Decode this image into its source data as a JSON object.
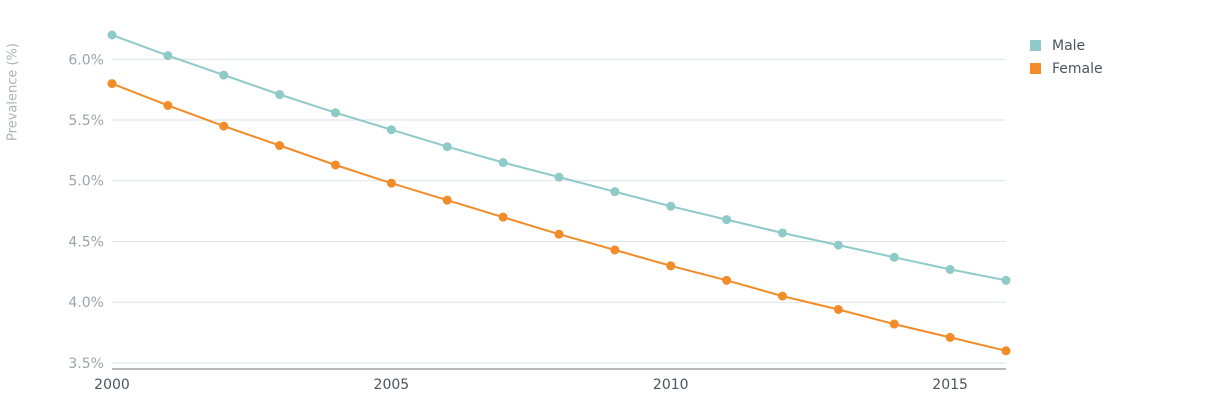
{
  "chart_data": {
    "type": "line",
    "title": "",
    "xlabel": "",
    "ylabel": "Prevalence (%)",
    "x": [
      2000,
      2001,
      2002,
      2003,
      2004,
      2005,
      2006,
      2007,
      2008,
      2009,
      2010,
      2011,
      2012,
      2013,
      2014,
      2015,
      2016
    ],
    "xlim": [
      2000,
      2016
    ],
    "ylim": [
      3.4,
      6.2
    ],
    "x_ticks": [
      2000,
      2005,
      2010,
      2015
    ],
    "x_tick_labels": [
      "2000",
      "2005",
      "2010",
      "2015"
    ],
    "y_ticks": [
      3.5,
      4.0,
      4.5,
      5.0,
      5.5,
      6.0
    ],
    "y_tick_labels": [
      "3.5%",
      "4.0%",
      "4.5%",
      "5.0%",
      "5.5%",
      "6.0%"
    ],
    "grid": true,
    "legend_position": "top-right",
    "series": [
      {
        "name": "Male",
        "color": "#8ecac8",
        "values": [
          6.2,
          6.03,
          5.87,
          5.71,
          5.56,
          5.42,
          5.28,
          5.15,
          5.03,
          4.91,
          4.79,
          4.68,
          4.57,
          4.47,
          4.37,
          4.27,
          4.18
        ]
      },
      {
        "name": "Female",
        "color": "#f28c28",
        "values": [
          5.8,
          5.62,
          5.45,
          5.29,
          5.13,
          4.98,
          4.84,
          4.7,
          4.56,
          4.43,
          4.3,
          4.18,
          4.05,
          3.94,
          3.82,
          3.71,
          3.6
        ]
      }
    ]
  }
}
